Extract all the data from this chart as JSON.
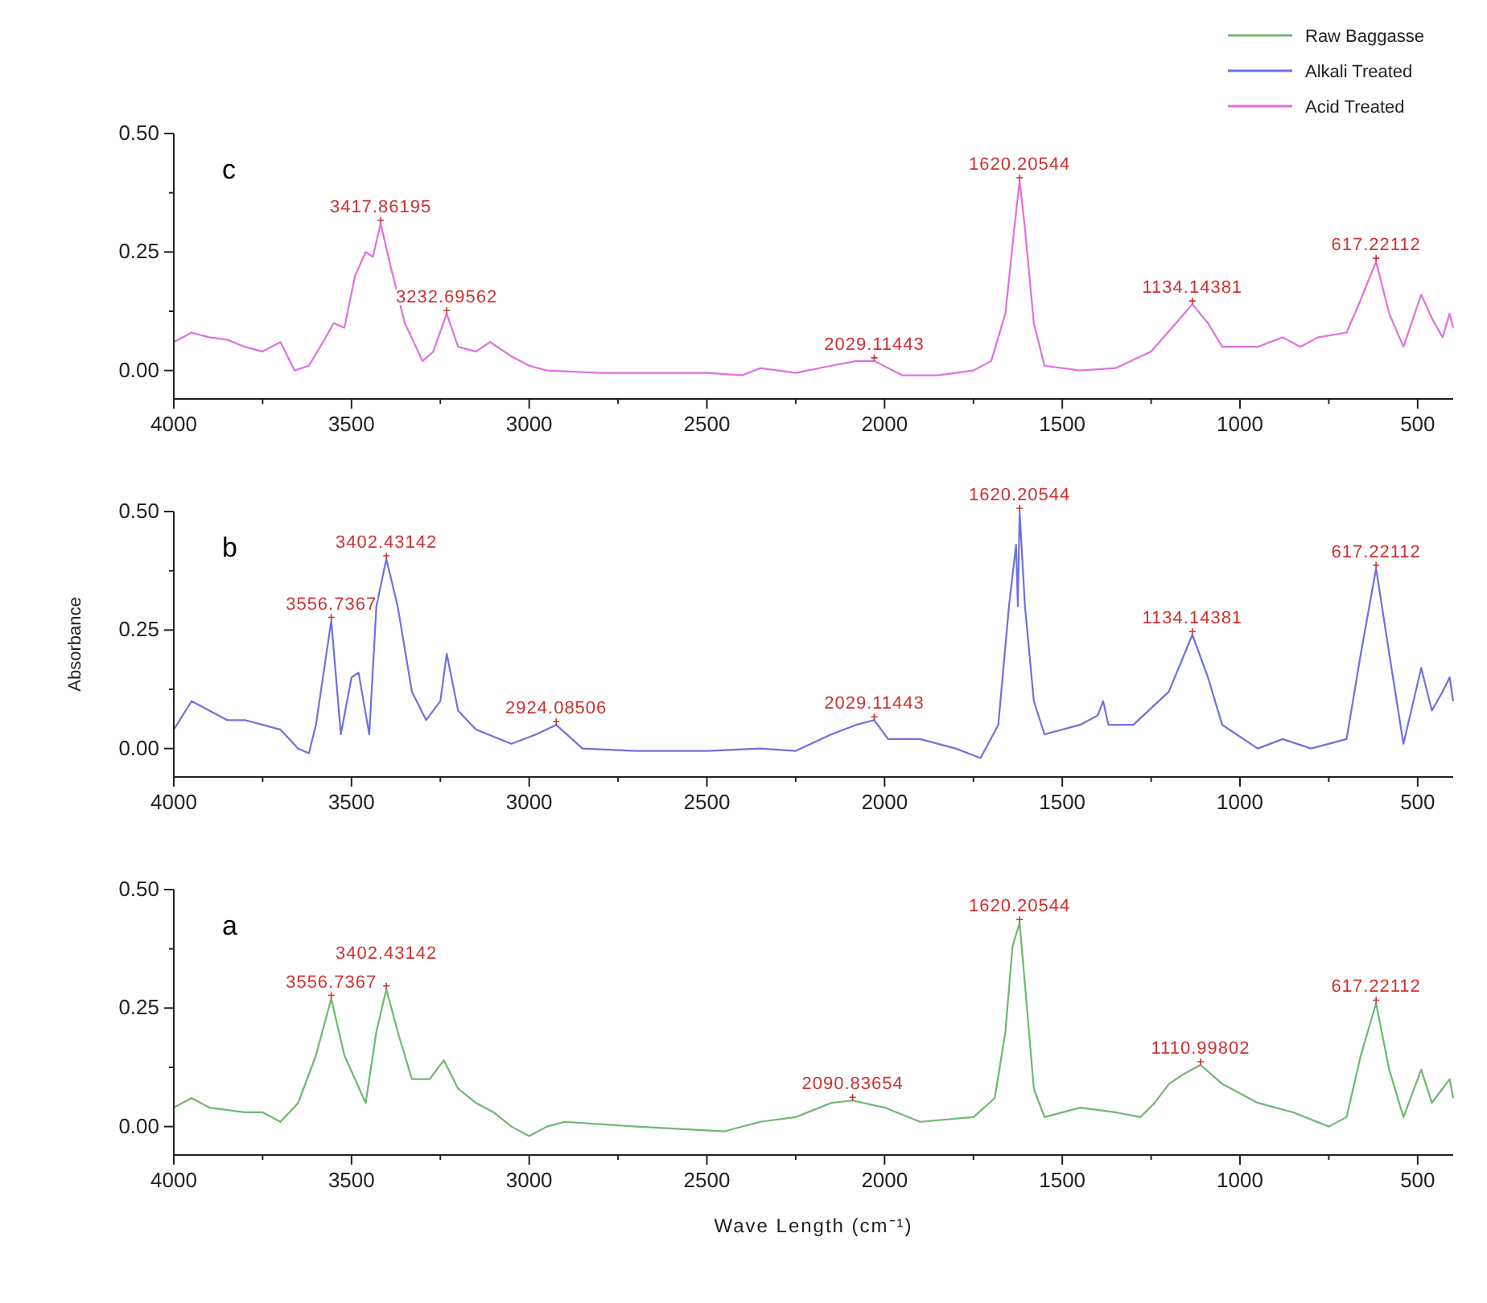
{
  "chart_data": [
    {
      "type": "line",
      "title": "c",
      "legend": "top right",
      "xlim": [
        4000,
        400
      ],
      "ylim": [
        -0.06,
        0.5
      ],
      "xticks": [
        4000,
        {
          "value": 3750,
          "label": null
        },
        3500,
        {
          "value": 3250,
          "label": null
        },
        3000,
        {
          "value": 2750,
          "label": null
        },
        2500,
        {
          "value": 2250,
          "label": null
        },
        2000,
        {
          "value": 1750,
          "label": null
        },
        1500,
        {
          "value": 1250,
          "label": null
        },
        1000,
        {
          "value": 750,
          "label": null
        },
        500
      ],
      "yticks": [
        {
          "value": 0,
          "label": "0.00"
        },
        {
          "value": 0.125,
          "label": null
        },
        {
          "value": 0.25,
          "label": "0.25"
        },
        {
          "value": 0.375,
          "label": null
        },
        {
          "value": 0.5,
          "label": "0.50"
        }
      ],
      "x": [
        4000,
        3950,
        3900,
        3850,
        3800,
        3750,
        3700,
        3660,
        3620,
        3580,
        3550,
        3520,
        3490,
        3460,
        3440,
        3418,
        3390,
        3350,
        3300,
        3270,
        3232,
        3200,
        3150,
        3110,
        3050,
        3000,
        2950,
        2800,
        2500,
        2400,
        2350,
        2250,
        2150,
        2080,
        2029,
        1950,
        1850,
        1750,
        1700,
        1660,
        1635,
        1620,
        1605,
        1580,
        1550,
        1450,
        1350,
        1250,
        1180,
        1134,
        1090,
        1050,
        950,
        880,
        830,
        780,
        700,
        660,
        617,
        580,
        540,
        490,
        460,
        430,
        410,
        400
      ],
      "series": [
        {
          "name": "Acid Treated",
          "color": "#e070e0",
          "values": [
            0.06,
            0.08,
            0.07,
            0.065,
            0.05,
            0.04,
            0.06,
            0.0,
            0.01,
            0.06,
            0.1,
            0.09,
            0.2,
            0.25,
            0.24,
            0.31,
            0.22,
            0.1,
            0.02,
            0.04,
            0.12,
            0.05,
            0.04,
            0.06,
            0.03,
            0.01,
            0.0,
            -0.005,
            -0.005,
            -0.01,
            0.005,
            -0.005,
            0.01,
            0.02,
            0.02,
            -0.01,
            -0.01,
            0.0,
            0.02,
            0.12,
            0.3,
            0.4,
            0.3,
            0.1,
            0.01,
            0.0,
            0.005,
            0.04,
            0.1,
            0.14,
            0.1,
            0.05,
            0.05,
            0.07,
            0.05,
            0.07,
            0.08,
            0.15,
            0.23,
            0.12,
            0.05,
            0.16,
            0.11,
            0.07,
            0.12,
            0.09
          ]
        }
      ],
      "annotations": [
        {
          "text": "3417.86195",
          "x": 3418,
          "y": 0.31
        },
        {
          "text": "3232.69562",
          "x": 3232,
          "y": 0.12
        },
        {
          "text": "2029.11443",
          "x": 2029,
          "y": 0.02
        },
        {
          "text": "1620.20544",
          "x": 1620,
          "y": 0.4
        },
        {
          "text": "1134.14381",
          "x": 1134,
          "y": 0.14
        },
        {
          "text": "617.22112",
          "x": 617,
          "y": 0.23
        }
      ]
    },
    {
      "type": "line",
      "title": "b",
      "ylabel": "Absorbance",
      "xlim": [
        4000,
        400
      ],
      "ylim": [
        -0.06,
        0.5
      ],
      "xticks": [
        4000,
        {
          "value": 3750,
          "label": null
        },
        3500,
        {
          "value": 3250,
          "label": null
        },
        3000,
        {
          "value": 2750,
          "label": null
        },
        2500,
        {
          "value": 2250,
          "label": null
        },
        2000,
        {
          "value": 1750,
          "label": null
        },
        1500,
        {
          "value": 1250,
          "label": null
        },
        1000,
        {
          "value": 750,
          "label": null
        },
        500
      ],
      "yticks": [
        {
          "value": 0,
          "label": "0.00"
        },
        {
          "value": 0.125,
          "label": null
        },
        {
          "value": 0.25,
          "label": "0.25"
        },
        {
          "value": 0.375,
          "label": null
        },
        {
          "value": 0.5,
          "label": "0.50"
        }
      ],
      "x": [
        4000,
        3950,
        3900,
        3850,
        3800,
        3750,
        3700,
        3650,
        3620,
        3600,
        3557,
        3530,
        3500,
        3480,
        3450,
        3430,
        3402,
        3370,
        3330,
        3290,
        3250,
        3232,
        3200,
        3150,
        3050,
        2980,
        2924,
        2850,
        2700,
        2500,
        2350,
        2250,
        2150,
        2080,
        2029,
        1990,
        1900,
        1800,
        1730,
        1680,
        1650,
        1630,
        1625,
        1620,
        1605,
        1580,
        1550,
        1450,
        1400,
        1385,
        1370,
        1300,
        1200,
        1134,
        1090,
        1050,
        950,
        880,
        800,
        700,
        660,
        617,
        580,
        540,
        490,
        460,
        430,
        410,
        400
      ],
      "series": [
        {
          "name": "Alkali Treated",
          "color": "#7070e0",
          "values": [
            0.04,
            0.1,
            0.08,
            0.06,
            0.06,
            0.05,
            0.04,
            0.0,
            -0.01,
            0.05,
            0.27,
            0.03,
            0.15,
            0.16,
            0.03,
            0.3,
            0.4,
            0.3,
            0.12,
            0.06,
            0.1,
            0.2,
            0.08,
            0.04,
            0.01,
            0.03,
            0.05,
            0.0,
            -0.005,
            -0.005,
            0.0,
            -0.005,
            0.03,
            0.05,
            0.06,
            0.02,
            0.02,
            0.0,
            -0.02,
            0.05,
            0.3,
            0.43,
            0.3,
            0.5,
            0.3,
            0.1,
            0.03,
            0.05,
            0.07,
            0.1,
            0.05,
            0.05,
            0.12,
            0.24,
            0.15,
            0.05,
            0.0,
            0.02,
            0.0,
            0.02,
            0.2,
            0.38,
            0.2,
            0.01,
            0.17,
            0.08,
            0.12,
            0.15,
            0.1
          ]
        }
      ],
      "annotations": [
        {
          "text": "3556.7367",
          "x": 3557,
          "y": 0.27
        },
        {
          "text": "3402.43142",
          "x": 3402,
          "y": 0.4
        },
        {
          "text": "2924.08506",
          "x": 2924,
          "y": 0.05
        },
        {
          "text": "2029.11443",
          "x": 2029,
          "y": 0.06
        },
        {
          "text": "1620.20544",
          "x": 1620,
          "y": 0.5
        },
        {
          "text": "1134.14381",
          "x": 1134,
          "y": 0.24
        },
        {
          "text": "617.22112",
          "x": 617,
          "y": 0.38
        }
      ]
    },
    {
      "type": "line",
      "title": "a",
      "xlabel": "Wave Length (cm⁻¹)",
      "xlim": [
        4000,
        400
      ],
      "ylim": [
        -0.06,
        0.5
      ],
      "xticks": [
        4000,
        {
          "value": 3750,
          "label": null
        },
        3500,
        {
          "value": 3250,
          "label": null
        },
        3000,
        {
          "value": 2750,
          "label": null
        },
        2500,
        {
          "value": 2250,
          "label": null
        },
        2000,
        {
          "value": 1750,
          "label": null
        },
        1500,
        {
          "value": 1250,
          "label": null
        },
        1000,
        {
          "value": 750,
          "label": null
        },
        500
      ],
      "yticks": [
        {
          "value": 0,
          "label": "0.00"
        },
        {
          "value": 0.125,
          "label": null
        },
        {
          "value": 0.25,
          "label": "0.25"
        },
        {
          "value": 0.375,
          "label": null
        },
        {
          "value": 0.5,
          "label": "0.50"
        }
      ],
      "x": [
        4000,
        3950,
        3900,
        3800,
        3750,
        3700,
        3650,
        3600,
        3557,
        3520,
        3490,
        3460,
        3430,
        3402,
        3370,
        3330,
        3280,
        3240,
        3200,
        3150,
        3100,
        3050,
        3000,
        2950,
        2900,
        2700,
        2450,
        2350,
        2250,
        2150,
        2090,
        2000,
        1900,
        1750,
        1690,
        1660,
        1640,
        1620,
        1605,
        1580,
        1550,
        1450,
        1350,
        1280,
        1240,
        1200,
        1160,
        1111,
        1050,
        950,
        850,
        750,
        700,
        660,
        617,
        580,
        540,
        490,
        460,
        430,
        410,
        400
      ],
      "series": [
        {
          "name": "Raw Baggasse",
          "color": "#70b870",
          "values": [
            0.04,
            0.06,
            0.04,
            0.03,
            0.03,
            0.01,
            0.05,
            0.15,
            0.27,
            0.15,
            0.1,
            0.05,
            0.2,
            0.29,
            0.2,
            0.1,
            0.1,
            0.14,
            0.08,
            0.05,
            0.03,
            0.0,
            -0.02,
            0.0,
            0.01,
            0.0,
            -0.01,
            0.01,
            0.02,
            0.05,
            0.055,
            0.04,
            0.01,
            0.02,
            0.06,
            0.2,
            0.38,
            0.43,
            0.3,
            0.08,
            0.02,
            0.04,
            0.03,
            0.02,
            0.05,
            0.09,
            0.11,
            0.13,
            0.09,
            0.05,
            0.03,
            0.0,
            0.02,
            0.15,
            0.26,
            0.12,
            0.02,
            0.12,
            0.05,
            0.08,
            0.1,
            0.06
          ]
        }
      ],
      "annotations": [
        {
          "text": "3556.7367",
          "x": 3557,
          "y": 0.27
        },
        {
          "text": "3402.43142",
          "x": 3402,
          "y": 0.29
        },
        {
          "text": "2090.83654",
          "x": 2090,
          "y": 0.055
        },
        {
          "text": "1620.20544",
          "x": 1620,
          "y": 0.43
        },
        {
          "text": "1110.99802",
          "x": 1111,
          "y": 0.13
        },
        {
          "text": "617.22112",
          "x": 617,
          "y": 0.26
        }
      ]
    }
  ]
}
